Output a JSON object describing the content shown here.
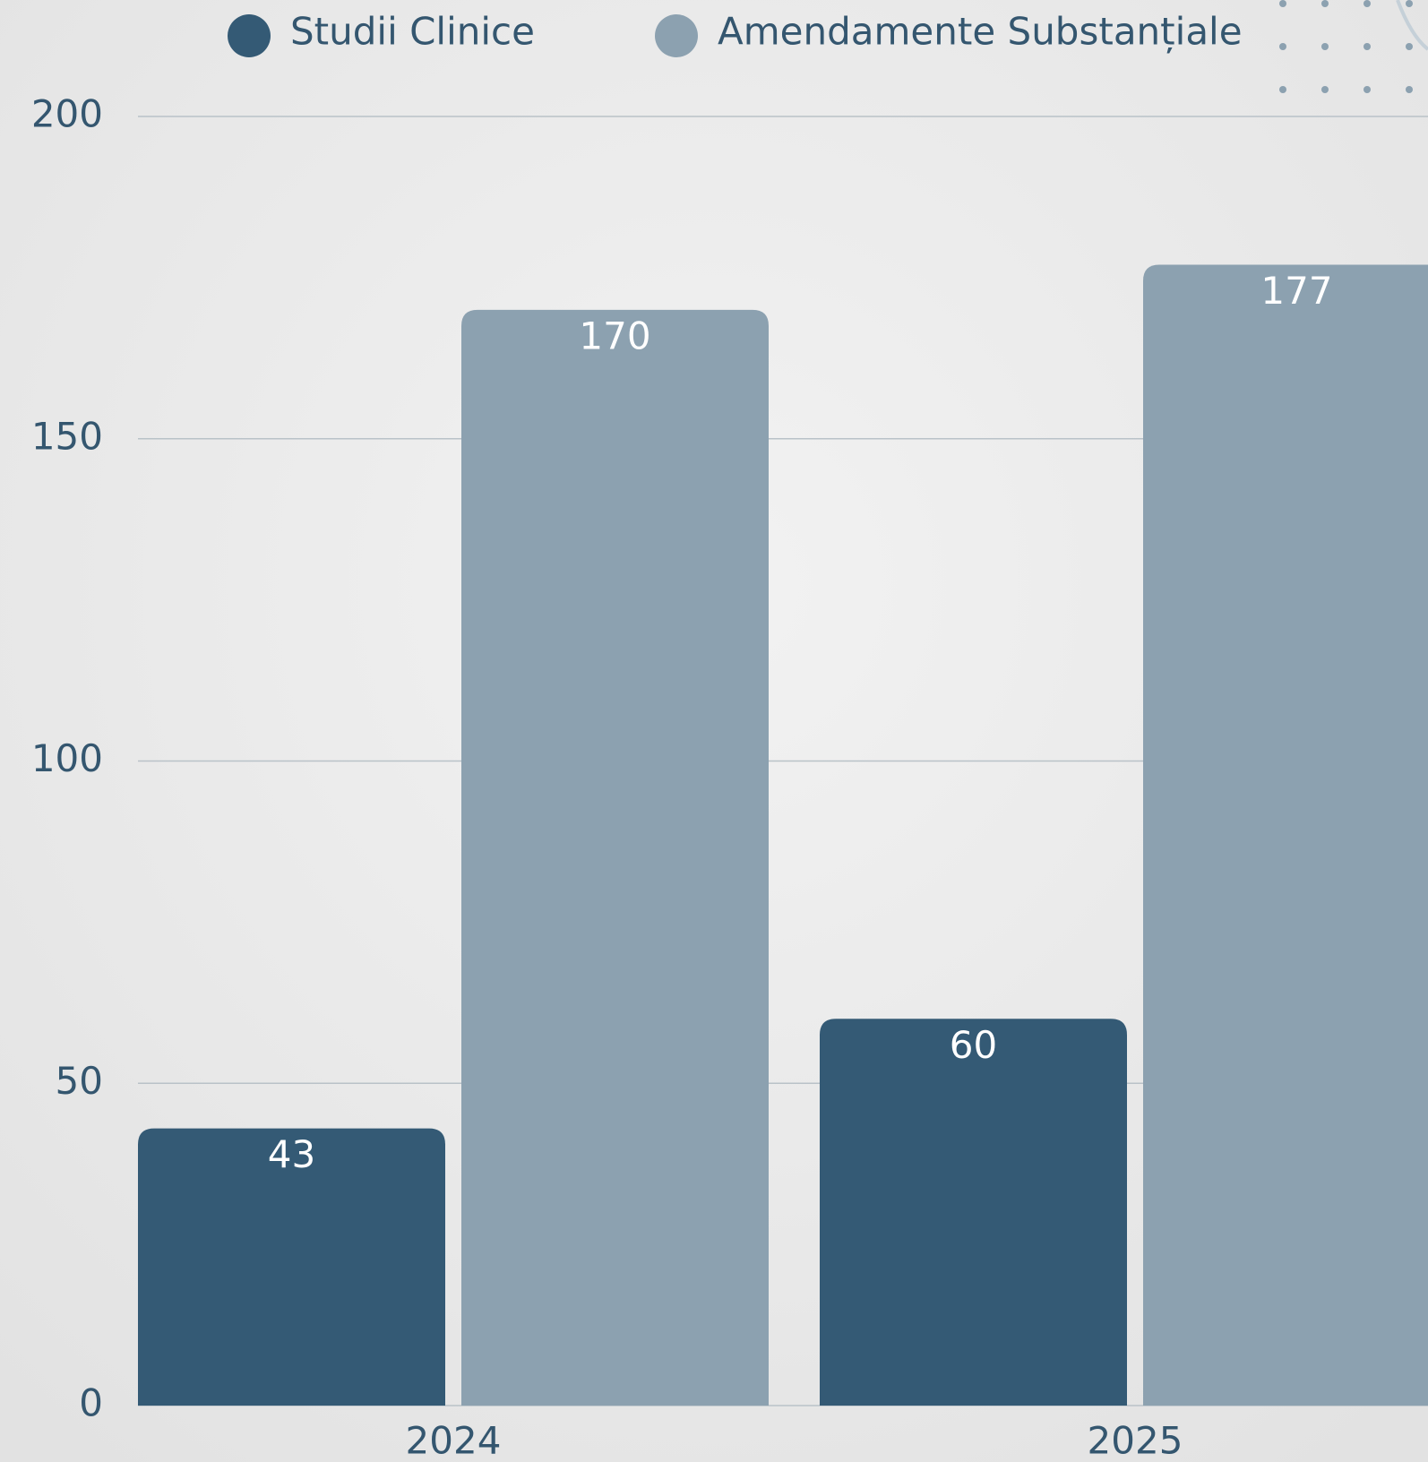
{
  "chart_data": {
    "type": "bar",
    "categories": [
      "2024",
      "2025"
    ],
    "series": [
      {
        "name": "Studii Clinice",
        "color": "#345a75",
        "values": [
          43,
          60
        ]
      },
      {
        "name": "Amendamente Substanțiale",
        "color": "#8ca1b0",
        "values": [
          170,
          177
        ]
      }
    ],
    "ylim": [
      0,
      200
    ],
    "yticks": [
      0,
      50,
      100,
      150,
      200
    ],
    "grid": true,
    "legend": "top"
  }
}
